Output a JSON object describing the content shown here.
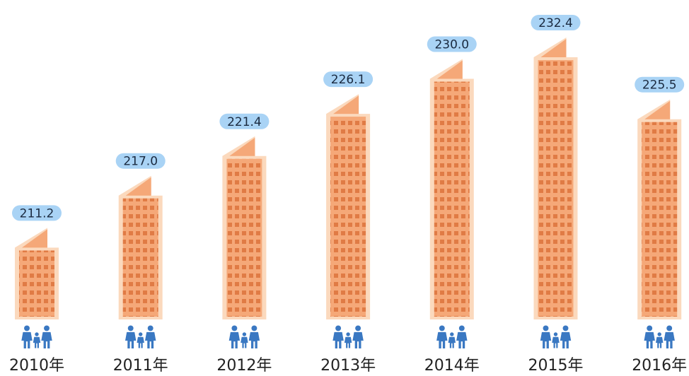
{
  "chart_data": {
    "type": "pictorial-bar",
    "categories": [
      "2010年",
      "2011年",
      "2012年",
      "2013年",
      "2014年",
      "2015年",
      "2016年"
    ],
    "values": [
      211.2,
      217.0,
      221.4,
      226.1,
      230.0,
      232.4,
      225.5
    ],
    "value_labels": [
      "211.2",
      "217.0",
      "221.4",
      "226.1",
      "230.0",
      "232.4",
      "225.5"
    ],
    "color": "#f5a878",
    "ylim": [
      201,
      235
    ]
  }
}
